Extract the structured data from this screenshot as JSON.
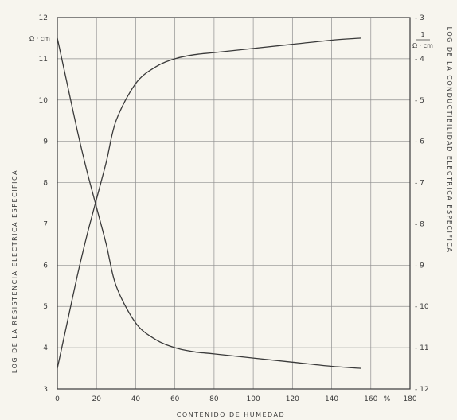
{
  "chart_data": {
    "type": "line",
    "xlabel": "CONTENIDO DE HUMEDAD",
    "ylabel_left": "LOG DE LA RESISTENCIA ELECTRICA ESPECIFICA",
    "ylabel_right": "LOG DE LA CONDUCTIBILIDAD ELECTRICA ESPECIFICA",
    "unit_left": "Ω · cm",
    "unit_right_num": "1",
    "unit_right_den": "Ω · cm",
    "x_percent_label": "%",
    "xlim": [
      0,
      180
    ],
    "ylim_left": [
      3,
      12
    ],
    "ylim_right": [
      -12,
      -3
    ],
    "x_ticks": [
      0,
      20,
      40,
      60,
      80,
      100,
      120,
      140,
      160,
      180
    ],
    "x_tick_labels": [
      "0",
      "20",
      "40",
      "60",
      "80",
      "100",
      "120",
      "140",
      "160",
      "180"
    ],
    "y_left_ticks": [
      3,
      4,
      5,
      6,
      7,
      8,
      9,
      10,
      11,
      12
    ],
    "y_left_tick_labels": [
      "3",
      "4",
      "5",
      "6",
      "7",
      "8",
      "9",
      "10",
      "11",
      "12"
    ],
    "y_right_ticks": [
      -3,
      -4,
      -5,
      -6,
      -7,
      -8,
      -9,
      -10,
      -11,
      -12
    ],
    "y_right_tick_labels": [
      "- 3",
      "- 4",
      "- 5",
      "- 6",
      "- 7",
      "- 8",
      "- 9",
      "- 10",
      "- 11",
      "- 12"
    ],
    "grid": true,
    "series": [
      {
        "axis": "left",
        "color": "#3a3a3a",
        "x": [
          0,
          5,
          10,
          15,
          20,
          25,
          30,
          40,
          50,
          60,
          70,
          80,
          100,
          120,
          140,
          155
        ],
        "y": [
          11.5,
          10.4,
          9.3,
          8.3,
          7.4,
          6.5,
          5.5,
          4.6,
          4.2,
          4.0,
          3.9,
          3.85,
          3.75,
          3.65,
          3.55,
          3.5
        ]
      },
      {
        "axis": "right",
        "color": "#3a3a3a",
        "x": [
          0,
          5,
          10,
          15,
          20,
          25,
          30,
          40,
          50,
          60,
          70,
          80,
          100,
          120,
          140,
          155
        ],
        "y": [
          -11.5,
          -10.4,
          -9.3,
          -8.3,
          -7.4,
          -6.5,
          -5.5,
          -4.6,
          -4.2,
          -4.0,
          -3.9,
          -3.85,
          -3.75,
          -3.65,
          -3.55,
          -3.5
        ]
      }
    ]
  }
}
